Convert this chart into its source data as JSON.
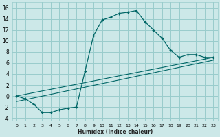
{
  "xlabel": "Humidex (Indice chaleur)",
  "bg_color": "#cce8e8",
  "grid_color": "#99cccc",
  "line_color": "#006666",
  "xlim": [
    -0.5,
    23.5
  ],
  "ylim": [
    -4.5,
    17
  ],
  "xticks": [
    0,
    1,
    2,
    3,
    4,
    5,
    6,
    7,
    8,
    9,
    10,
    11,
    12,
    13,
    14,
    15,
    16,
    17,
    18,
    19,
    20,
    21,
    22,
    23
  ],
  "yticks": [
    -4,
    -2,
    0,
    2,
    4,
    6,
    8,
    10,
    12,
    14,
    16
  ],
  "curve1_x": [
    0,
    1,
    2,
    3,
    4,
    5,
    6,
    7,
    8,
    9,
    10,
    11,
    12,
    13,
    14,
    15,
    16,
    17,
    18,
    19,
    20,
    21,
    22,
    23
  ],
  "curve1_y": [
    0,
    -0.5,
    -1.5,
    -3,
    -3,
    -2.5,
    -2.2,
    -2,
    4.5,
    11,
    13.8,
    14.3,
    15.0,
    15.2,
    15.5,
    13.5,
    12.0,
    10.5,
    8.3,
    7.0,
    7.5,
    7.5,
    7.0,
    7.0
  ],
  "line1_x": [
    0,
    23
  ],
  "line1_y": [
    0,
    7
  ],
  "line2_x": [
    0,
    23
  ],
  "line2_y": [
    -1.0,
    6.5
  ],
  "xlabel_fontsize": 5.5,
  "tick_fontsize_x": 4.5,
  "tick_fontsize_y": 5.5
}
